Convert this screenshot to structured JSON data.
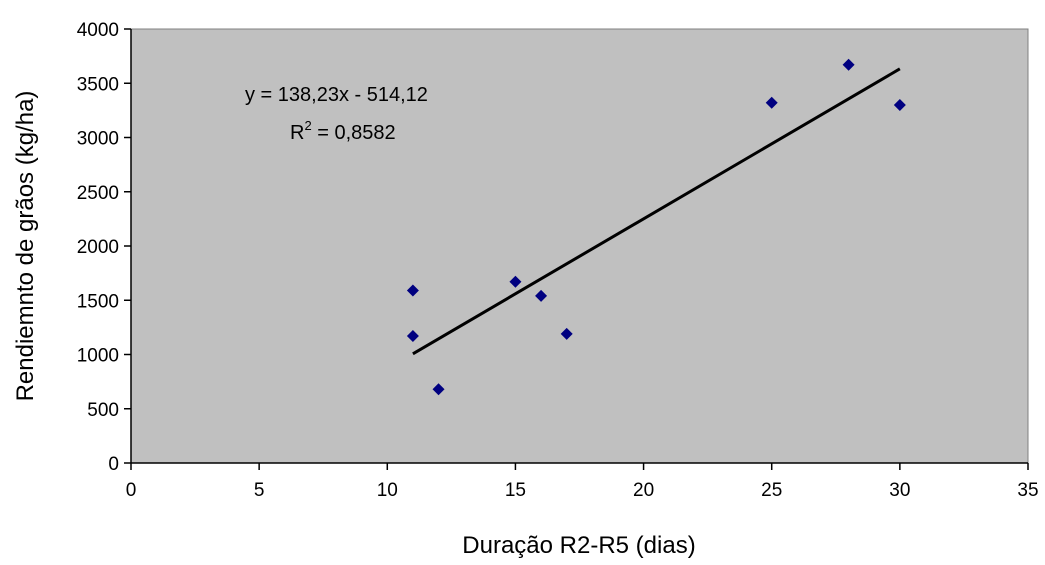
{
  "chart_data": {
    "type": "scatter",
    "xlabel": "Duração R2-R5 (dias)",
    "ylabel": "Rendiemnto de grãos (kg/ha)",
    "xlim": [
      0,
      35
    ],
    "ylim": [
      0,
      4000
    ],
    "x_ticks": [
      0,
      5,
      10,
      15,
      20,
      25,
      30,
      35
    ],
    "y_ticks": [
      0,
      500,
      1000,
      1500,
      2000,
      2500,
      3000,
      3500,
      4000
    ],
    "grid": false,
    "plot_background": "#C0C0C0",
    "marker_color": "#000080",
    "marker": "diamond",
    "points": [
      {
        "x": 11,
        "y": 1590
      },
      {
        "x": 11,
        "y": 1170
      },
      {
        "x": 12,
        "y": 680
      },
      {
        "x": 15,
        "y": 1670
      },
      {
        "x": 16,
        "y": 1540
      },
      {
        "x": 17,
        "y": 1190
      },
      {
        "x": 25,
        "y": 3320
      },
      {
        "x": 28,
        "y": 3670
      },
      {
        "x": 30,
        "y": 3300
      }
    ],
    "trendline": {
      "slope": 138.23,
      "intercept": -514.12,
      "x_range": [
        11,
        30
      ],
      "color": "#000000",
      "equation_text": "y = 138,23x - 514,12",
      "r2_prefix": "R",
      "r2_sup": "2",
      "r2_value": " = 0,8582"
    }
  }
}
